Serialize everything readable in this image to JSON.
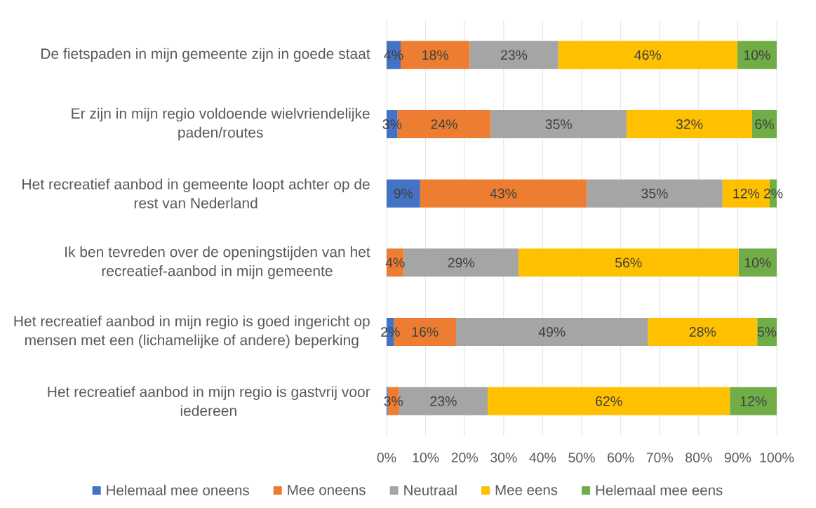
{
  "chart_data": {
    "type": "bar",
    "orientation": "horizontal",
    "stacked": true,
    "categories": [
      "De fietspaden in mijn gemeente zijn in goede staat",
      "Er zijn in mijn regio voldoende wielvriendelijke paden/routes",
      "Het recreatief aanbod in gemeente loopt achter op de rest van Nederland",
      "Ik ben tevreden over de openingstijden van het recreatief-aanbod in mijn gemeente",
      "Het recreatief aanbod in mijn regio is goed ingericht op mensen met een (lichamelijke of andere) beperking",
      "Het recreatief aanbod in mijn regio is gastvrij voor iedereen"
    ],
    "series": [
      {
        "name": "Helemaal mee oneens",
        "color": "#4472c4",
        "values": [
          3.6,
          2.8,
          8.6,
          null,
          1.9,
          0.3
        ],
        "value_labels": [
          "4%",
          "3%",
          "9%",
          null,
          "2%",
          null
        ]
      },
      {
        "name": "Mee oneens",
        "color": "#ed7d31",
        "values": [
          17.7,
          23.9,
          42.7,
          4.4,
          15.9,
          2.9
        ],
        "value_labels": [
          "18%",
          "24%",
          "43%",
          "4%",
          "16%",
          "3%"
        ]
      },
      {
        "name": "Neutraal",
        "color": "#a5a5a5",
        "values": [
          22.7,
          34.8,
          34.8,
          29.4,
          49.2,
          22.7
        ],
        "value_labels": [
          "23%",
          "35%",
          "35%",
          "29%",
          "49%",
          "23%"
        ]
      },
      {
        "name": "Mee eens",
        "color": "#ffc000",
        "values": [
          45.9,
          32.2,
          12.1,
          56.4,
          28.0,
          62.1
        ],
        "value_labels": [
          "46%",
          "32%",
          "12%",
          "56%",
          "28%",
          "62%"
        ]
      },
      {
        "name": "Helemaal mee eens",
        "color": "#70ad47",
        "values": [
          10.1,
          6.3,
          1.8,
          9.8,
          5.0,
          12.0
        ],
        "value_labels": [
          "10%",
          "6%",
          "2%",
          "10%",
          "5%",
          "12%"
        ]
      }
    ],
    "xlim": [
      0,
      100
    ],
    "xticks": [
      {
        "value": 0,
        "label": "0%"
      },
      {
        "value": 10,
        "label": "10%"
      },
      {
        "value": 20,
        "label": "20%"
      },
      {
        "value": 30,
        "label": "30%"
      },
      {
        "value": 40,
        "label": "40%"
      },
      {
        "value": 50,
        "label": "50%"
      },
      {
        "value": 60,
        "label": "60%"
      },
      {
        "value": 70,
        "label": "70%"
      },
      {
        "value": 80,
        "label": "80%"
      },
      {
        "value": 90,
        "label": "90%"
      },
      {
        "value": 100,
        "label": "100%"
      }
    ],
    "grid": "x",
    "legend": "bottom"
  }
}
